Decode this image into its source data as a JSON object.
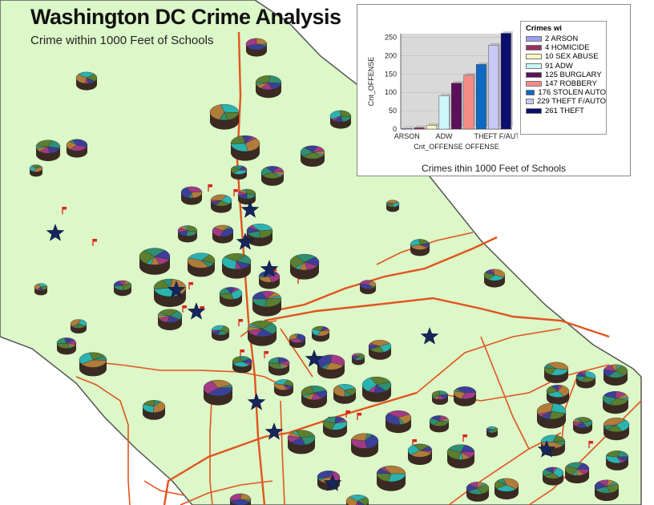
{
  "map": {
    "title": "Washington DC Crime Analysis",
    "subtitle": "Crime within 1000 Feet of Schools",
    "colors": {
      "land": "#dcf7c8",
      "boundary": "#555555",
      "roads": "#e1541e",
      "star": "#16265a",
      "school_flag": "#d8261a"
    }
  },
  "inset": {
    "caption": "Crimes ithin 1000 Feet of Schools",
    "legend_title": "Crimes wi"
  },
  "chart_data": {
    "type": "bar",
    "title": "",
    "ylabel": "Cnt_OFFENSE",
    "xlabel_lines": [
      "Cnt_OFFENSE",
      "OFFENSE"
    ],
    "x_tick_labels": [
      "ARSON",
      "ADW",
      "THEFT F/AUTO"
    ],
    "y_ticks": [
      "0",
      "50",
      "100",
      "150",
      "200",
      "250"
    ],
    "ylim": [
      0,
      260
    ],
    "series": [
      {
        "name": "ARSON",
        "value": 2,
        "color": "#9a9ef0",
        "legend": "2 ARSON"
      },
      {
        "name": "HOMICIDE",
        "value": 4,
        "color": "#9a2f5e",
        "legend": "4 HOMICIDE"
      },
      {
        "name": "SEX ABUSE",
        "value": 10,
        "color": "#fbf7c5",
        "legend": "10 SEX ABUSE"
      },
      {
        "name": "ADW",
        "value": 91,
        "color": "#cdf6fa",
        "legend": "91 ADW"
      },
      {
        "name": "BURGLARY",
        "value": 125,
        "color": "#5c0f5b",
        "legend": "125 BURGLARY"
      },
      {
        "name": "ROBBERY",
        "value": 147,
        "color": "#f48b86",
        "legend": "147 ROBBERY"
      },
      {
        "name": "STOLEN AUTO",
        "value": 176,
        "color": "#0e68c4",
        "legend": "176 STOLEN AUTO"
      },
      {
        "name": "THEFT F/AUTO",
        "value": 229,
        "color": "#c9c9f8",
        "legend": "229 THEFT F/AUTO"
      },
      {
        "name": "THEFT",
        "value": 261,
        "color": "#0a0e6e",
        "legend": "261 THEFT"
      }
    ]
  }
}
